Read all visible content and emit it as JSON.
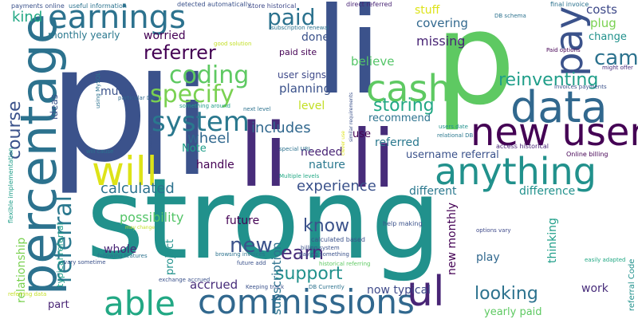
{
  "words": [
    {
      "text": "strong",
      "color": "#21918c"
    },
    {
      "text": "p",
      "color": "#3b528b"
    },
    {
      "text": "p",
      "color": "#5ec962"
    },
    {
      "text": "li",
      "color": "#3b528b"
    },
    {
      "text": "li",
      "color": "#472c7a"
    },
    {
      "text": "li",
      "color": "#472c7a"
    },
    {
      "text": "li",
      "color": "#3b528b"
    },
    {
      "text": "percentage",
      "color": "#2c728e"
    },
    {
      "text": "earnings",
      "color": "#2c728e"
    },
    {
      "text": "data",
      "color": "#31688e"
    },
    {
      "text": "cash",
      "color": "#5ec962"
    },
    {
      "text": "new user",
      "color": "#440154"
    },
    {
      "text": "anything",
      "color": "#21918c"
    },
    {
      "text": "pay",
      "color": "#3b528b"
    },
    {
      "text": "will",
      "color": "#dde318"
    },
    {
      "text": "commissions",
      "color": "#31688e"
    },
    {
      "text": "ul",
      "color": "#482475"
    },
    {
      "text": "able",
      "color": "#22a884"
    },
    {
      "text": "paid",
      "color": "#2c728e"
    },
    {
      "text": "system",
      "color": "#2a788e"
    },
    {
      "text": "specify",
      "color": "#7ad151"
    },
    {
      "text": "coding",
      "color": "#5ec962"
    },
    {
      "text": "referrer",
      "color": "#440154"
    },
    {
      "text": "came",
      "color": "#2c728e"
    },
    {
      "text": "reinventing",
      "color": "#1f9e89"
    },
    {
      "text": "storing",
      "color": "#22a884"
    },
    {
      "text": "referral",
      "color": "#2a788e"
    },
    {
      "text": "course",
      "color": "#3b528b"
    },
    {
      "text": "new",
      "color": "#3b528b"
    },
    {
      "text": "earn",
      "color": "#472c7a"
    },
    {
      "text": "know",
      "color": "#3b528b"
    },
    {
      "text": "support",
      "color": "#21918c"
    },
    {
      "text": "looking",
      "color": "#2c728e"
    },
    {
      "text": "kind",
      "color": "#22a884"
    },
    {
      "text": "calculated",
      "color": "#2c728e"
    },
    {
      "text": "experience",
      "color": "#3b528b"
    },
    {
      "text": "includes",
      "color": "#31688e"
    },
    {
      "text": "wheel",
      "color": "#31688e"
    },
    {
      "text": "possibility",
      "color": "#54c568"
    },
    {
      "text": "subscription",
      "color": "#2c728e"
    },
    {
      "text": "relationship",
      "color": "#7ad151"
    },
    {
      "text": "worried",
      "color": "#440154"
    },
    {
      "text": "monthly yearly",
      "color": "#2a788e"
    },
    {
      "text": "stuff",
      "color": "#dde318"
    },
    {
      "text": "covering",
      "color": "#31688e"
    },
    {
      "text": "missing",
      "color": "#482475"
    },
    {
      "text": "costs",
      "color": "#3e4989"
    },
    {
      "text": "plug",
      "color": "#7ad151"
    },
    {
      "text": "change",
      "color": "#21918c"
    },
    {
      "text": "done",
      "color": "#3b528b"
    },
    {
      "text": "believe",
      "color": "#54c568"
    },
    {
      "text": "planning",
      "color": "#3b528b"
    },
    {
      "text": "level",
      "color": "#c2df23"
    },
    {
      "text": "recommend",
      "color": "#2c728e"
    },
    {
      "text": "user signs",
      "color": "#3e4989"
    },
    {
      "text": "paid site",
      "color": "#440154"
    },
    {
      "text": "much",
      "color": "#3b528b"
    },
    {
      "text": "ideas",
      "color": "#3b528b"
    },
    {
      "text": "Note",
      "color": "#1f9e89"
    },
    {
      "text": "handle",
      "color": "#440154"
    },
    {
      "text": "nature",
      "color": "#2a788e"
    },
    {
      "text": "needed",
      "color": "#482475"
    },
    {
      "text": "referred",
      "color": "#2a788e"
    },
    {
      "text": "use",
      "color": "#440154"
    },
    {
      "text": "username referral",
      "color": "#3b528b"
    },
    {
      "text": "different",
      "color": "#2a788e"
    },
    {
      "text": "difference",
      "color": "#21918c"
    },
    {
      "text": "future",
      "color": "#440154"
    },
    {
      "text": "project",
      "color": "#21918c"
    },
    {
      "text": "whole",
      "color": "#482475"
    },
    {
      "text": "accrued",
      "color": "#472c7a"
    },
    {
      "text": "part",
      "color": "#482475"
    },
    {
      "text": "now typical",
      "color": "#3e4989"
    },
    {
      "text": "new monthly",
      "color": "#440154"
    },
    {
      "text": "play",
      "color": "#31688e"
    },
    {
      "text": "work",
      "color": "#472c7a"
    },
    {
      "text": "thinking",
      "color": "#1f9e89"
    },
    {
      "text": "yearly paid",
      "color": "#5ec962"
    },
    {
      "text": "typical referral",
      "color": "#1f9e89"
    },
    {
      "text": "referral Code",
      "color": "#21918c"
    },
    {
      "text": "payments online",
      "color": "#3b528b"
    },
    {
      "text": "useful information",
      "color": "#2c728e"
    },
    {
      "text": "detected automatically",
      "color": "#3b528b"
    },
    {
      "text": "store historical",
      "color": "#3e4989"
    },
    {
      "text": "direct referred",
      "color": "#482475"
    },
    {
      "text": "final invoice",
      "color": "#2c728e"
    },
    {
      "text": "DB schema",
      "color": "#2c728e"
    },
    {
      "text": "subscription renewal",
      "color": "#2c728e"
    },
    {
      "text": "Paid options",
      "color": "#440154"
    },
    {
      "text": "good solution",
      "color": "#c2df23"
    },
    {
      "text": "might offer",
      "color": "#472c7a"
    },
    {
      "text": "invoices payments",
      "color": "#3b528b"
    },
    {
      "text": "next level",
      "color": "#2c728e"
    },
    {
      "text": "something around",
      "color": "#1f9e89"
    },
    {
      "text": "using MySQL",
      "color": "#2c728e"
    },
    {
      "text": "particular DB",
      "color": "#31688e"
    },
    {
      "text": "RDBMS right",
      "color": "#3b528b"
    },
    {
      "text": "users date",
      "color": "#21918c"
    },
    {
      "text": "relational DB",
      "color": "#2a788e"
    },
    {
      "text": "access historical",
      "color": "#482475"
    },
    {
      "text": "Online billing",
      "color": "#440154"
    },
    {
      "text": "similar requirements",
      "color": "#3b528b"
    },
    {
      "text": "special URL",
      "color": "#2c728e"
    },
    {
      "text": "Multiple levels",
      "color": "#22a884"
    },
    {
      "text": "will cause",
      "color": "#2c728e"
    },
    {
      "text": "flexible implementation",
      "color": "#1f9e89"
    },
    {
      "text": "calculated based",
      "color": "#3b528b"
    },
    {
      "text": "help making",
      "color": "#3b528b"
    },
    {
      "text": "billing system",
      "color": "#3b528b"
    },
    {
      "text": "options vary",
      "color": "#3e4989"
    },
    {
      "text": "may change",
      "color": "#c2df23"
    },
    {
      "text": "browsing invoices",
      "color": "#2c728e"
    },
    {
      "text": "paying something",
      "color": "#3b528b"
    },
    {
      "text": "following features",
      "color": "#2c728e"
    },
    {
      "text": "vary sometime",
      "color": "#3b528b"
    },
    {
      "text": "future add",
      "color": "#3b528b"
    },
    {
      "text": "historical referring",
      "color": "#5ec962"
    },
    {
      "text": "exchange accrued",
      "color": "#3b528b"
    },
    {
      "text": "easily adapted",
      "color": "#22a884"
    },
    {
      "text": "Keeping track",
      "color": "#3b528b"
    },
    {
      "text": "DB Currently",
      "color": "#2c728e"
    },
    {
      "text": "referring data",
      "color": "#c2df23"
    },
    {
      "text": "clever use",
      "color": "#dde318"
    }
  ]
}
